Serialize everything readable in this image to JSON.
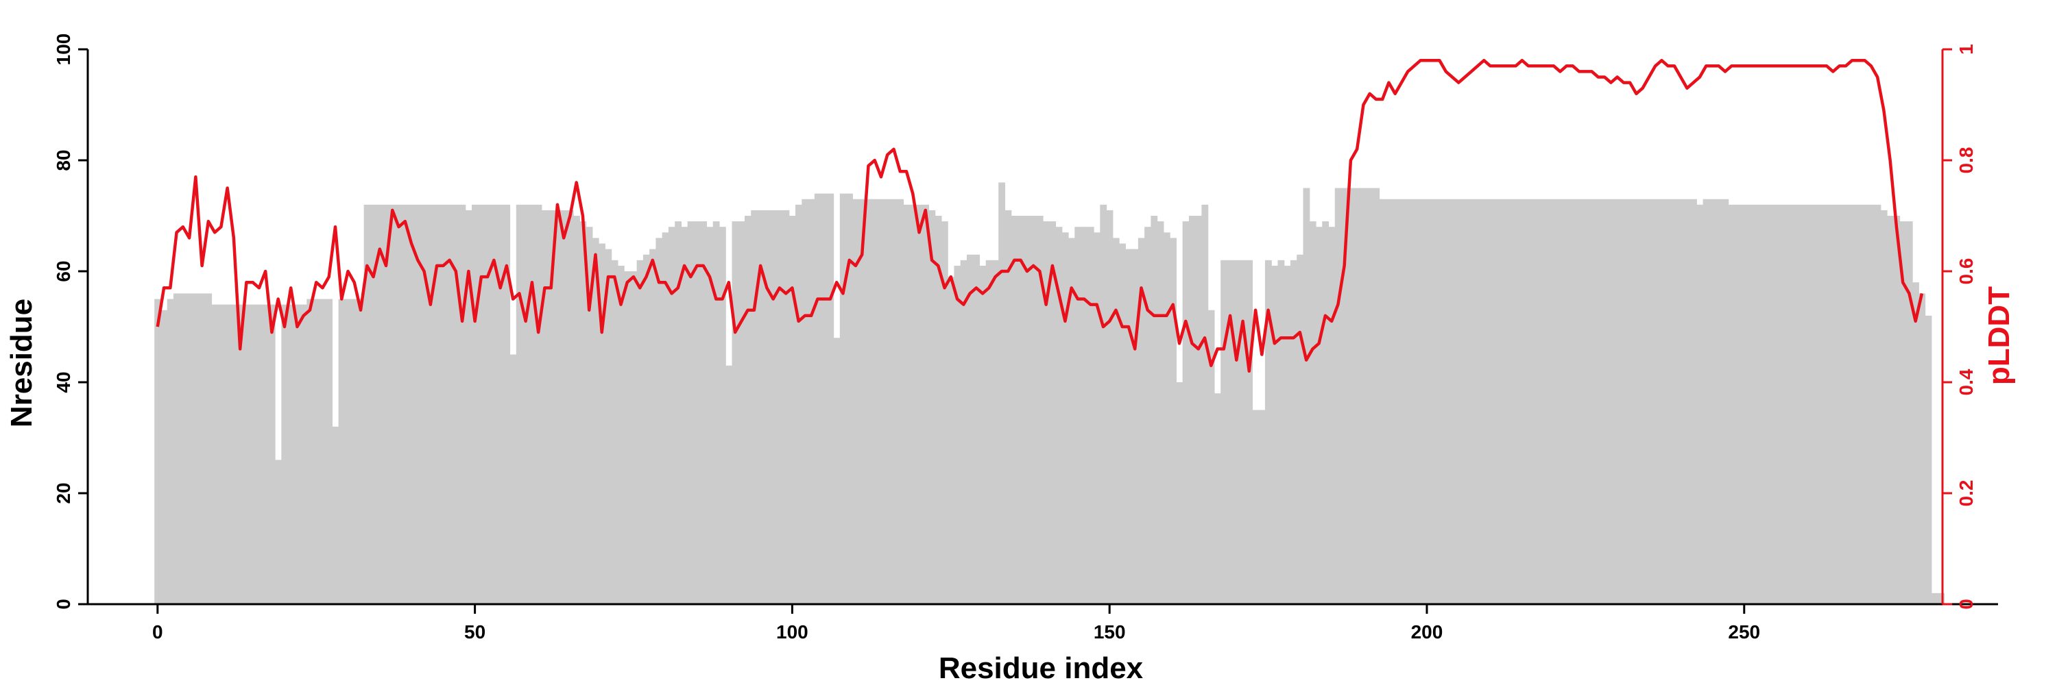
{
  "chart_data": {
    "type": "bar+line",
    "xlabel": "Residue index",
    "ylabel_left": "Nresidue",
    "ylabel_right": "pLDDT",
    "xlim": [
      -11,
      290
    ],
    "x_ticks": [
      0,
      50,
      100,
      150,
      200,
      250
    ],
    "ylim_left": [
      0,
      100
    ],
    "y_ticks_left": [
      0,
      20,
      40,
      60,
      80,
      100
    ],
    "ylim_right": [
      0,
      1
    ],
    "y_ticks_right": [
      0,
      0.2,
      0.4,
      0.6,
      0.8,
      1
    ],
    "y_tick_labels_right": [
      "0",
      "0.2",
      "0.4",
      "0.6",
      "0.8",
      "1"
    ],
    "grid": false,
    "colors": {
      "bars": "#cccccc",
      "line": "#e8101a",
      "axis": "#000000",
      "right_axis": "#e8101a"
    },
    "series": [
      {
        "type": "bar",
        "x_start": 0,
        "values": [
          55,
          53,
          55,
          56,
          56,
          56,
          56,
          56,
          56,
          54,
          54,
          54,
          54,
          54,
          54,
          54,
          54,
          54,
          54,
          26,
          54,
          54,
          54,
          54,
          55,
          55,
          55,
          55,
          32,
          55,
          55,
          55,
          55,
          72,
          72,
          72,
          72,
          72,
          72,
          72,
          72,
          72,
          72,
          72,
          72,
          72,
          72,
          72,
          72,
          71,
          72,
          72,
          72,
          72,
          72,
          72,
          45,
          72,
          72,
          72,
          72,
          71,
          71,
          71,
          71,
          71,
          70,
          69,
          68,
          66,
          65,
          64,
          62,
          61,
          60,
          60,
          62,
          63,
          64,
          66,
          67,
          68,
          69,
          68,
          69,
          69,
          69,
          68,
          69,
          68,
          43,
          69,
          69,
          70,
          71,
          71,
          71,
          71,
          71,
          71,
          70,
          72,
          73,
          73,
          74,
          74,
          74,
          48,
          74,
          74,
          73,
          73,
          73,
          73,
          73,
          73,
          73,
          73,
          72,
          72,
          72,
          72,
          71,
          70,
          69,
          59,
          61,
          62,
          63,
          63,
          61,
          62,
          62,
          76,
          71,
          70,
          70,
          70,
          70,
          70,
          69,
          69,
          68,
          67,
          66,
          68,
          68,
          68,
          67,
          72,
          71,
          66,
          65,
          64,
          64,
          66,
          68,
          70,
          69,
          67,
          66,
          40,
          69,
          70,
          70,
          72,
          53,
          38,
          62,
          62,
          62,
          62,
          62,
          35,
          35,
          62,
          61,
          62,
          61,
          62,
          63,
          75,
          69,
          68,
          69,
          68,
          75,
          75,
          75,
          75,
          75,
          75,
          75,
          73,
          73,
          73,
          73,
          73,
          73,
          73,
          73,
          73,
          73,
          73,
          73,
          73,
          73,
          73,
          73,
          73,
          73,
          73,
          73,
          73,
          73,
          73,
          73,
          73,
          73,
          73,
          73,
          73,
          73,
          73,
          73,
          73,
          73,
          73,
          73,
          73,
          73,
          73,
          73,
          73,
          73,
          73,
          73,
          73,
          73,
          73,
          73,
          73,
          73,
          72,
          73,
          73,
          73,
          73,
          72,
          72,
          72,
          72,
          72,
          72,
          72,
          72,
          72,
          72,
          72,
          72,
          72,
          72,
          72,
          72,
          72,
          72,
          72,
          72,
          72,
          72,
          72,
          72,
          71,
          70,
          70,
          69,
          69,
          58,
          56,
          52,
          2,
          2
        ]
      },
      {
        "type": "line",
        "x_start": 0,
        "values": [
          0.5,
          0.57,
          0.57,
          0.67,
          0.68,
          0.66,
          0.77,
          0.61,
          0.69,
          0.67,
          0.68,
          0.75,
          0.66,
          0.46,
          0.58,
          0.58,
          0.57,
          0.6,
          0.49,
          0.55,
          0.5,
          0.57,
          0.5,
          0.52,
          0.53,
          0.58,
          0.57,
          0.59,
          0.68,
          0.55,
          0.6,
          0.58,
          0.53,
          0.61,
          0.59,
          0.64,
          0.61,
          0.71,
          0.68,
          0.69,
          0.65,
          0.62,
          0.6,
          0.54,
          0.61,
          0.61,
          0.62,
          0.6,
          0.51,
          0.6,
          0.51,
          0.59,
          0.59,
          0.62,
          0.57,
          0.61,
          0.55,
          0.56,
          0.51,
          0.58,
          0.49,
          0.57,
          0.57,
          0.72,
          0.66,
          0.7,
          0.76,
          0.7,
          0.53,
          0.63,
          0.49,
          0.59,
          0.59,
          0.54,
          0.58,
          0.59,
          0.57,
          0.59,
          0.62,
          0.58,
          0.58,
          0.56,
          0.57,
          0.61,
          0.59,
          0.61,
          0.61,
          0.59,
          0.55,
          0.55,
          0.58,
          0.49,
          0.51,
          0.53,
          0.53,
          0.61,
          0.57,
          0.55,
          0.57,
          0.56,
          0.57,
          0.51,
          0.52,
          0.52,
          0.55,
          0.55,
          0.55,
          0.58,
          0.56,
          0.62,
          0.61,
          0.63,
          0.79,
          0.8,
          0.77,
          0.81,
          0.82,
          0.78,
          0.78,
          0.74,
          0.67,
          0.71,
          0.62,
          0.61,
          0.57,
          0.59,
          0.55,
          0.54,
          0.56,
          0.57,
          0.56,
          0.57,
          0.59,
          0.6,
          0.6,
          0.62,
          0.62,
          0.6,
          0.61,
          0.6,
          0.54,
          0.61,
          0.56,
          0.51,
          0.57,
          0.55,
          0.55,
          0.54,
          0.54,
          0.5,
          0.51,
          0.53,
          0.5,
          0.5,
          0.46,
          0.57,
          0.53,
          0.52,
          0.52,
          0.52,
          0.54,
          0.47,
          0.51,
          0.47,
          0.46,
          0.48,
          0.43,
          0.46,
          0.46,
          0.52,
          0.44,
          0.51,
          0.42,
          0.53,
          0.45,
          0.53,
          0.47,
          0.48,
          0.48,
          0.48,
          0.49,
          0.44,
          0.46,
          0.47,
          0.52,
          0.51,
          0.54,
          0.61,
          0.8,
          0.82,
          0.9,
          0.92,
          0.91,
          0.91,
          0.94,
          0.92,
          0.94,
          0.96,
          0.97,
          0.98,
          0.98,
          0.98,
          0.98,
          0.96,
          0.95,
          0.94,
          0.95,
          0.96,
          0.97,
          0.98,
          0.97,
          0.97,
          0.97,
          0.97,
          0.97,
          0.98,
          0.97,
          0.97,
          0.97,
          0.97,
          0.97,
          0.96,
          0.97,
          0.97,
          0.96,
          0.96,
          0.96,
          0.95,
          0.95,
          0.94,
          0.95,
          0.94,
          0.94,
          0.92,
          0.93,
          0.95,
          0.97,
          0.98,
          0.97,
          0.97,
          0.95,
          0.93,
          0.94,
          0.95,
          0.97,
          0.97,
          0.97,
          0.96,
          0.97,
          0.97,
          0.97,
          0.97,
          0.97,
          0.97,
          0.97,
          0.97,
          0.97,
          0.97,
          0.97,
          0.97,
          0.97,
          0.97,
          0.97,
          0.97,
          0.96,
          0.97,
          0.97,
          0.98,
          0.98,
          0.98,
          0.97,
          0.95,
          0.89,
          0.8,
          0.68,
          0.58,
          0.56,
          0.51,
          0.56
        ]
      }
    ]
  }
}
